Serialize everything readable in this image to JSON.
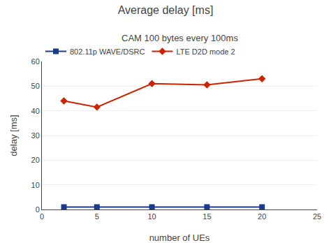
{
  "chart_data": {
    "type": "line",
    "title": "Average delay [ms]",
    "subtitle": "CAM 100 bytes every 100ms",
    "xlabel": "number of UEs",
    "ylabel": "delay [ms]",
    "x": [
      2,
      5,
      10,
      15,
      20
    ],
    "series": [
      {
        "name": "802.11p WAVE/DSRC",
        "color": "#1a3a8c",
        "marker": "square",
        "values": [
          1.0,
          1.0,
          1.0,
          1.0,
          1.0
        ]
      },
      {
        "name": "LTE D2D mode 2",
        "color": "#cc2200",
        "marker": "diamond",
        "values": [
          44.0,
          41.5,
          51.0,
          50.5,
          53.0
        ]
      }
    ],
    "xlim": [
      0,
      25
    ],
    "ylim": [
      0,
      60
    ],
    "xticks": [
      0,
      5,
      10,
      15,
      20,
      25
    ],
    "yticks": [
      0,
      10,
      20,
      30,
      40,
      50,
      60
    ],
    "grid": "y",
    "legend": "upper left"
  }
}
